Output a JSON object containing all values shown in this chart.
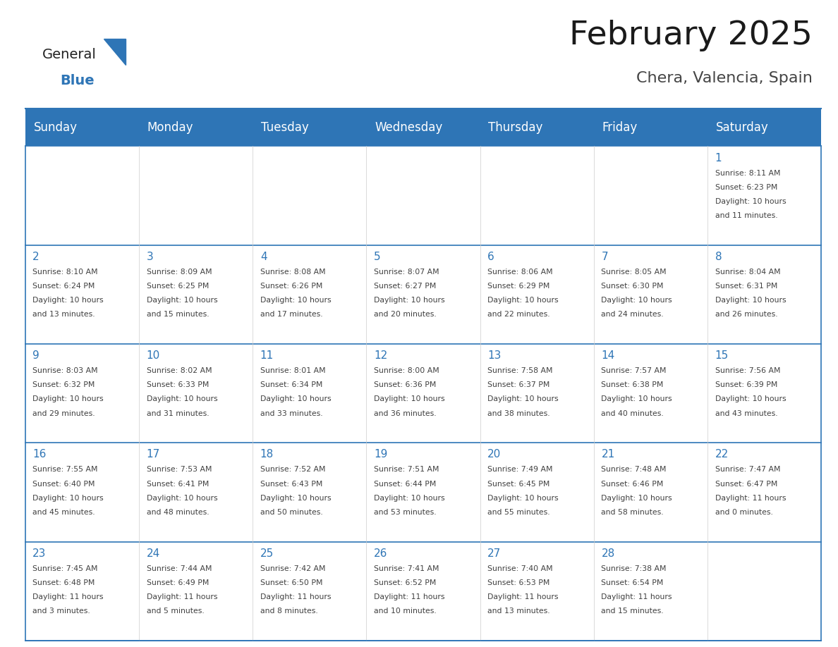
{
  "title": "February 2025",
  "subtitle": "Chera, Valencia, Spain",
  "days_of_week": [
    "Sunday",
    "Monday",
    "Tuesday",
    "Wednesday",
    "Thursday",
    "Friday",
    "Saturday"
  ],
  "header_bg": "#2E75B6",
  "header_text": "#FFFFFF",
  "border_color": "#2E75B6",
  "day_number_color": "#2E75B6",
  "info_text_color": "#404040",
  "calendar_data": [
    [
      null,
      null,
      null,
      null,
      null,
      null,
      {
        "day": 1,
        "sunrise": "8:11 AM",
        "sunset": "6:23 PM",
        "daylight": "10 hours\nand 11 minutes."
      }
    ],
    [
      {
        "day": 2,
        "sunrise": "8:10 AM",
        "sunset": "6:24 PM",
        "daylight": "10 hours\nand 13 minutes."
      },
      {
        "day": 3,
        "sunrise": "8:09 AM",
        "sunset": "6:25 PM",
        "daylight": "10 hours\nand 15 minutes."
      },
      {
        "day": 4,
        "sunrise": "8:08 AM",
        "sunset": "6:26 PM",
        "daylight": "10 hours\nand 17 minutes."
      },
      {
        "day": 5,
        "sunrise": "8:07 AM",
        "sunset": "6:27 PM",
        "daylight": "10 hours\nand 20 minutes."
      },
      {
        "day": 6,
        "sunrise": "8:06 AM",
        "sunset": "6:29 PM",
        "daylight": "10 hours\nand 22 minutes."
      },
      {
        "day": 7,
        "sunrise": "8:05 AM",
        "sunset": "6:30 PM",
        "daylight": "10 hours\nand 24 minutes."
      },
      {
        "day": 8,
        "sunrise": "8:04 AM",
        "sunset": "6:31 PM",
        "daylight": "10 hours\nand 26 minutes."
      }
    ],
    [
      {
        "day": 9,
        "sunrise": "8:03 AM",
        "sunset": "6:32 PM",
        "daylight": "10 hours\nand 29 minutes."
      },
      {
        "day": 10,
        "sunrise": "8:02 AM",
        "sunset": "6:33 PM",
        "daylight": "10 hours\nand 31 minutes."
      },
      {
        "day": 11,
        "sunrise": "8:01 AM",
        "sunset": "6:34 PM",
        "daylight": "10 hours\nand 33 minutes."
      },
      {
        "day": 12,
        "sunrise": "8:00 AM",
        "sunset": "6:36 PM",
        "daylight": "10 hours\nand 36 minutes."
      },
      {
        "day": 13,
        "sunrise": "7:58 AM",
        "sunset": "6:37 PM",
        "daylight": "10 hours\nand 38 minutes."
      },
      {
        "day": 14,
        "sunrise": "7:57 AM",
        "sunset": "6:38 PM",
        "daylight": "10 hours\nand 40 minutes."
      },
      {
        "day": 15,
        "sunrise": "7:56 AM",
        "sunset": "6:39 PM",
        "daylight": "10 hours\nand 43 minutes."
      }
    ],
    [
      {
        "day": 16,
        "sunrise": "7:55 AM",
        "sunset": "6:40 PM",
        "daylight": "10 hours\nand 45 minutes."
      },
      {
        "day": 17,
        "sunrise": "7:53 AM",
        "sunset": "6:41 PM",
        "daylight": "10 hours\nand 48 minutes."
      },
      {
        "day": 18,
        "sunrise": "7:52 AM",
        "sunset": "6:43 PM",
        "daylight": "10 hours\nand 50 minutes."
      },
      {
        "day": 19,
        "sunrise": "7:51 AM",
        "sunset": "6:44 PM",
        "daylight": "10 hours\nand 53 minutes."
      },
      {
        "day": 20,
        "sunrise": "7:49 AM",
        "sunset": "6:45 PM",
        "daylight": "10 hours\nand 55 minutes."
      },
      {
        "day": 21,
        "sunrise": "7:48 AM",
        "sunset": "6:46 PM",
        "daylight": "10 hours\nand 58 minutes."
      },
      {
        "day": 22,
        "sunrise": "7:47 AM",
        "sunset": "6:47 PM",
        "daylight": "11 hours\nand 0 minutes."
      }
    ],
    [
      {
        "day": 23,
        "sunrise": "7:45 AM",
        "sunset": "6:48 PM",
        "daylight": "11 hours\nand 3 minutes."
      },
      {
        "day": 24,
        "sunrise": "7:44 AM",
        "sunset": "6:49 PM",
        "daylight": "11 hours\nand 5 minutes."
      },
      {
        "day": 25,
        "sunrise": "7:42 AM",
        "sunset": "6:50 PM",
        "daylight": "11 hours\nand 8 minutes."
      },
      {
        "day": 26,
        "sunrise": "7:41 AM",
        "sunset": "6:52 PM",
        "daylight": "11 hours\nand 10 minutes."
      },
      {
        "day": 27,
        "sunrise": "7:40 AM",
        "sunset": "6:53 PM",
        "daylight": "11 hours\nand 13 minutes."
      },
      {
        "day": 28,
        "sunrise": "7:38 AM",
        "sunset": "6:54 PM",
        "daylight": "11 hours\nand 15 minutes."
      },
      null
    ]
  ],
  "logo_general_color": "#222222",
  "logo_blue_color": "#2E75B6",
  "fig_width": 11.88,
  "fig_height": 9.18
}
